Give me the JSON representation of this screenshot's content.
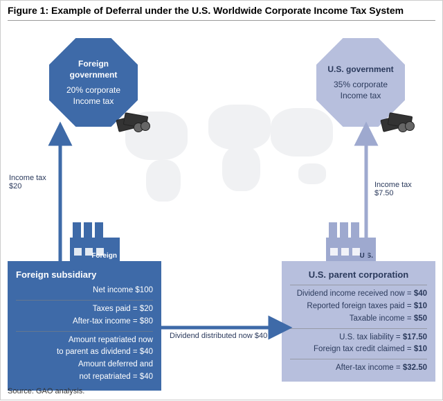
{
  "title": "Figure 1: Example of Deferral under the U.S. Worldwide Corporate Income Tax System",
  "source": "Source: GAO analysis.",
  "colors": {
    "dark": "#3e6aa8",
    "light": "#b7bfdd",
    "text_dark": "#2b3a5c",
    "world": "#d5d8de"
  },
  "foreign_gov": {
    "name": "Foreign government",
    "rate_line1": "20% corporate",
    "rate_line2": "Income tax"
  },
  "us_gov": {
    "name": "U.S. government",
    "rate_line1": "35% corporate",
    "rate_line2": "Income tax"
  },
  "arrows": {
    "foreign_tax": {
      "label1": "Income tax",
      "label2": "$20"
    },
    "us_tax": {
      "label1": "Income tax",
      "label2": "$7.50"
    },
    "dividend": {
      "label": "Dividend distributed now $40"
    }
  },
  "factory_labels": {
    "foreign": "Foreign",
    "us": "U.S."
  },
  "foreign_sub": {
    "head": "Foreign subsidiary",
    "rows": [
      "Net income $100",
      "Taxes paid = $20",
      "After-tax income = $80",
      "Amount repatriated now\nto parent as dividend = $40",
      "Amount deferred and\nnot repatriated = $40"
    ],
    "rules_after": [
      0,
      2
    ]
  },
  "us_parent": {
    "head": "U.S. parent corporation",
    "rows": [
      "Dividend income received now = <b>$40</b>",
      "Reported foreign taxes paid = <b>$10</b>",
      "Taxable income = <b>$50</b>",
      "U.S. tax liability = <b>$17.50</b>",
      "Foreign tax credit claimed = <b>$10</b>",
      "After-tax income = <b>$32.50</b>"
    ],
    "rules_after": [
      2,
      4
    ]
  }
}
